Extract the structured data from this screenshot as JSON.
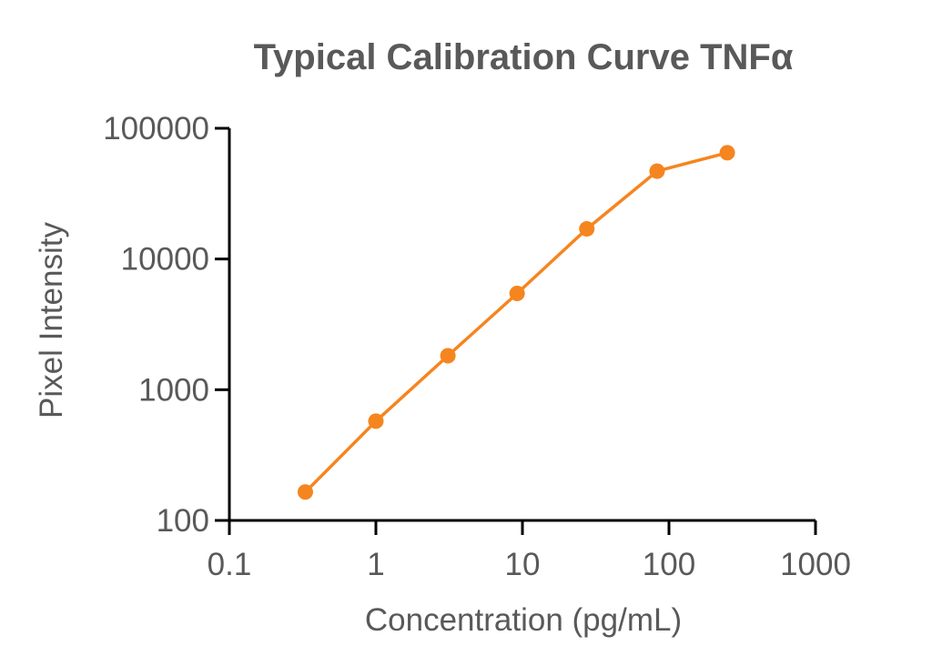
{
  "chart_data": {
    "type": "line",
    "title": "Typical Calibration Curve TNFα",
    "xlabel": "Concentration (pg/mL)",
    "ylabel": "Pixel Intensity",
    "x_scale": "log",
    "y_scale": "log",
    "xlim": [
      0.1,
      1000
    ],
    "ylim": [
      100,
      100000
    ],
    "x_ticks": [
      "0.1",
      "1",
      "10",
      "100",
      "1000"
    ],
    "y_ticks": [
      "100",
      "1000",
      "10000",
      "100000"
    ],
    "grid": false,
    "series": [
      {
        "color": "#F5851F",
        "marker": "circle",
        "points": [
          {
            "x": 0.33,
            "y": 165
          },
          {
            "x": 1.0,
            "y": 575
          },
          {
            "x": 3.1,
            "y": 1820
          },
          {
            "x": 9.2,
            "y": 5450
          },
          {
            "x": 27.5,
            "y": 17000
          },
          {
            "x": 83,
            "y": 47000
          },
          {
            "x": 250,
            "y": 65000
          }
        ]
      }
    ]
  }
}
